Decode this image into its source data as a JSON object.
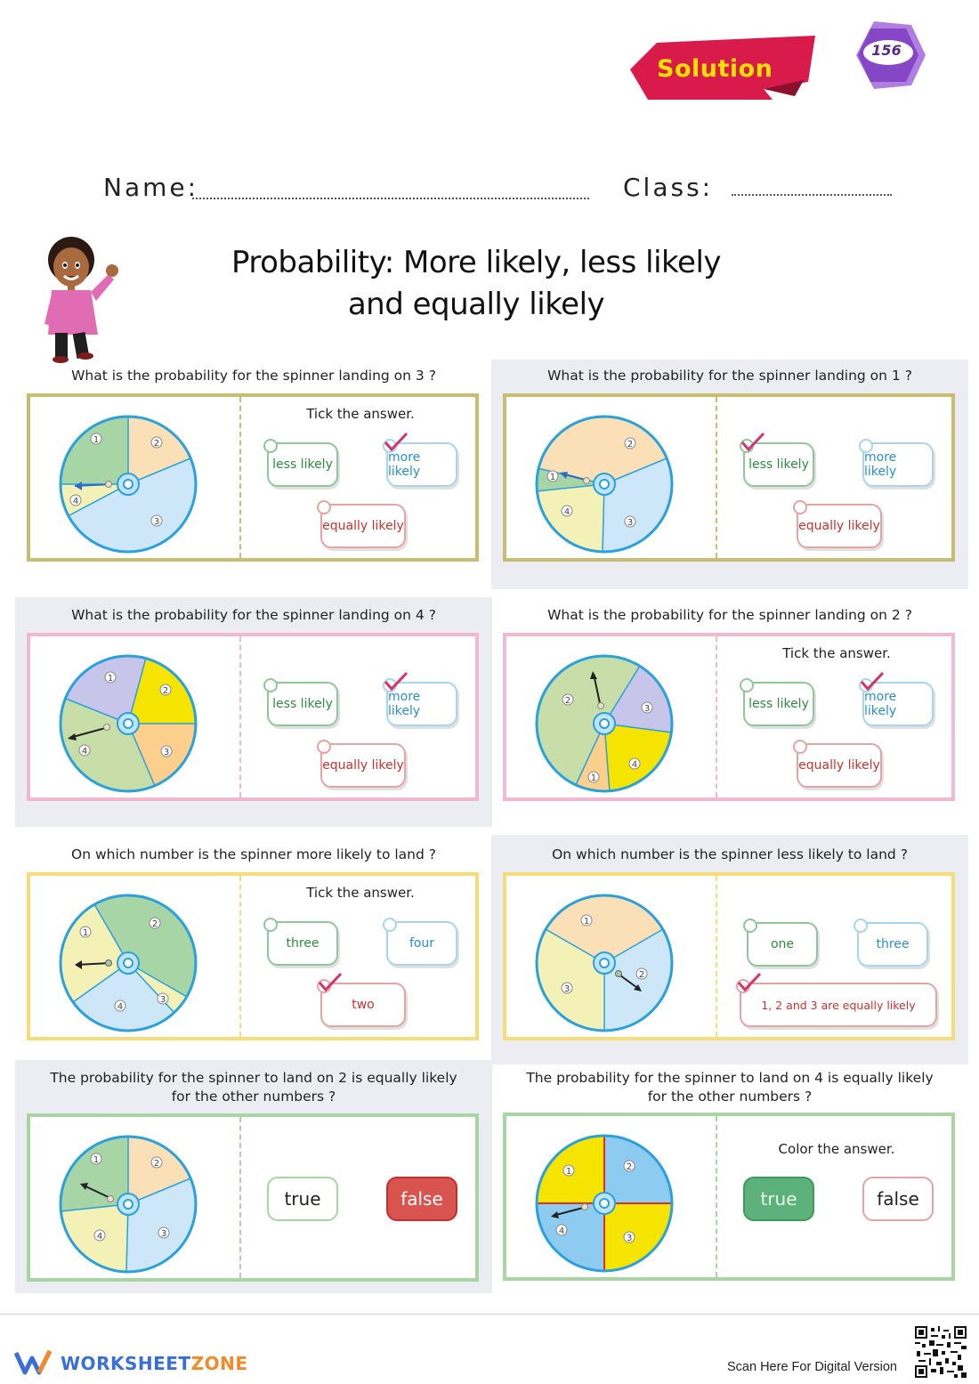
{
  "header": {
    "solution_label": "Solution",
    "badge_number": "156",
    "name_label": "Name:",
    "class_label": "Class:"
  },
  "title": {
    "line1": "Probability: More likely, less likely",
    "line2": "and equally likely"
  },
  "sections": [
    {
      "question": "What is the probability for the spinner landing on 3 ?",
      "instruction": "Tick the answer.",
      "options": [
        "less likely",
        "more likely",
        "equally likely"
      ],
      "checked": "more likely",
      "spinner_numbers": [
        "1",
        "2",
        "3",
        "4"
      ]
    },
    {
      "question": "What is the probability for the spinner landing on 1 ?",
      "instruction": "",
      "options": [
        "less likely",
        "more likely",
        "equally likely"
      ],
      "checked": "less likely",
      "spinner_numbers": [
        "1",
        "2",
        "3",
        "4"
      ]
    },
    {
      "question": "What is the probability for the spinner landing on 4 ?",
      "instruction": "",
      "options": [
        "less likely",
        "more likely",
        "equally likely"
      ],
      "checked": "more likely",
      "spinner_numbers": [
        "1",
        "2",
        "3",
        "4"
      ]
    },
    {
      "question": "What is the probability for the spinner landing on 2 ?",
      "instruction": "Tick the answer.",
      "options": [
        "less likely",
        "more likely",
        "equally likely"
      ],
      "checked": "more likely",
      "spinner_numbers": [
        "1",
        "2",
        "3",
        "4"
      ]
    },
    {
      "question": "On which number is the spinner more likely to land ?",
      "instruction": "Tick the answer.",
      "options": [
        "three",
        "four",
        "two"
      ],
      "checked": "two",
      "spinner_numbers": [
        "1",
        "2",
        "3",
        "4"
      ]
    },
    {
      "question": "On which number is the spinner less likely to land ?",
      "instruction": "",
      "options": [
        "one",
        "three",
        "1, 2 and 3 are equally likely"
      ],
      "checked": "1, 2 and 3 are equally likely",
      "spinner_numbers": [
        "1",
        "2",
        "3"
      ]
    },
    {
      "question_line1": "The probability for the spinner to land on 2 is equally likely",
      "question_line2": "for the other numbers ?",
      "instruction": "",
      "options": [
        "true",
        "false"
      ],
      "colored": "false",
      "spinner_numbers": [
        "1",
        "2",
        "3",
        "4"
      ]
    },
    {
      "question_line1": "The probability for the spinner to land on 4 is equally likely",
      "question_line2": "for the other numbers ?",
      "instruction": "Color the answer.",
      "options": [
        "true",
        "false"
      ],
      "colored": "true",
      "spinner_numbers": [
        "1",
        "2",
        "3",
        "4"
      ]
    }
  ],
  "colors": {
    "olive_border": "#c7be73",
    "pink_border": "#f2b8cf",
    "yellow_border": "#f6dd7a",
    "green_border": "#a8d5a2",
    "check": "#d6326b",
    "false_fill": "#d9534f",
    "true_fill": "#5cb27a"
  },
  "footer": {
    "brand_part1": "WORKSHEET",
    "brand_part2": "ZONE",
    "scan_text": "Scan Here For Digital Version"
  }
}
